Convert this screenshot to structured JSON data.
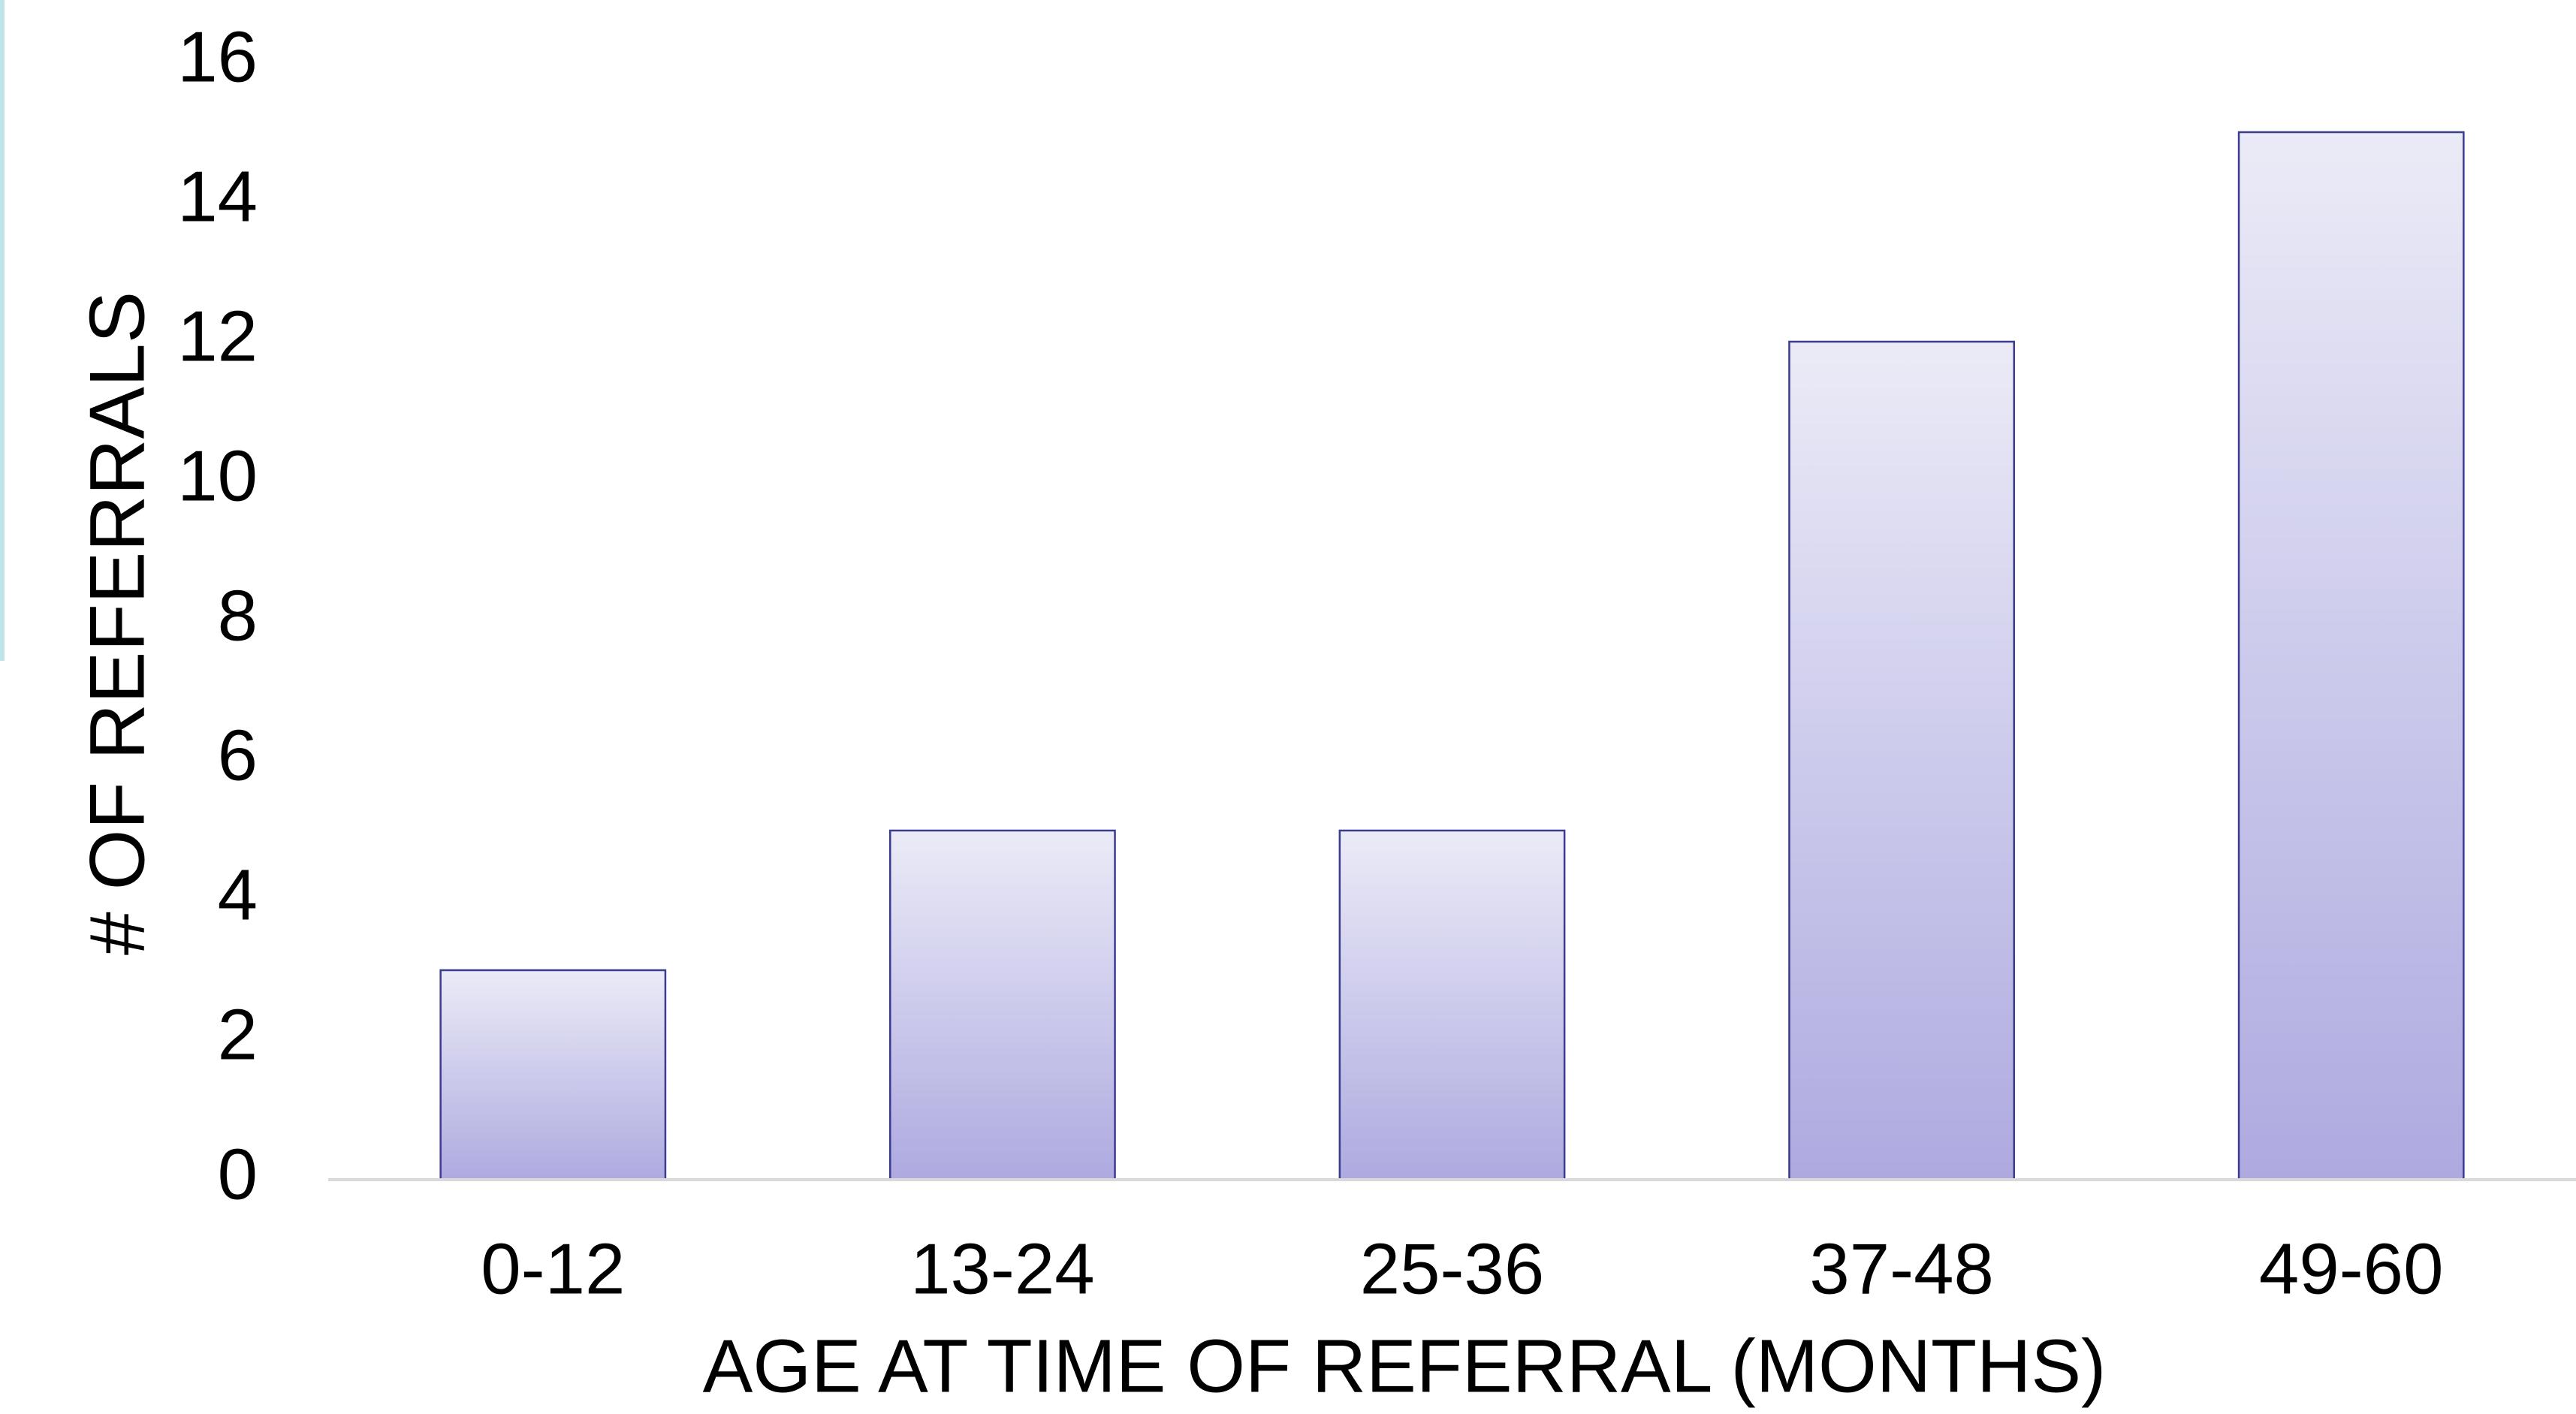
{
  "chart_data": {
    "type": "bar",
    "xlabel": "AGE AT TIME OF REFERRAL (MONTHS)",
    "ylabel": "# OF REFERRALS",
    "categories": [
      "0-12",
      "13-24",
      "25-36",
      "37-48",
      "49-60"
    ],
    "values": [
      3,
      5,
      5,
      12,
      15
    ],
    "color": "#aeaae0",
    "ylim": [
      0,
      16
    ],
    "yticks": [
      0,
      2,
      4,
      6,
      8,
      10,
      12,
      14,
      16
    ],
    "grid": false
  }
}
